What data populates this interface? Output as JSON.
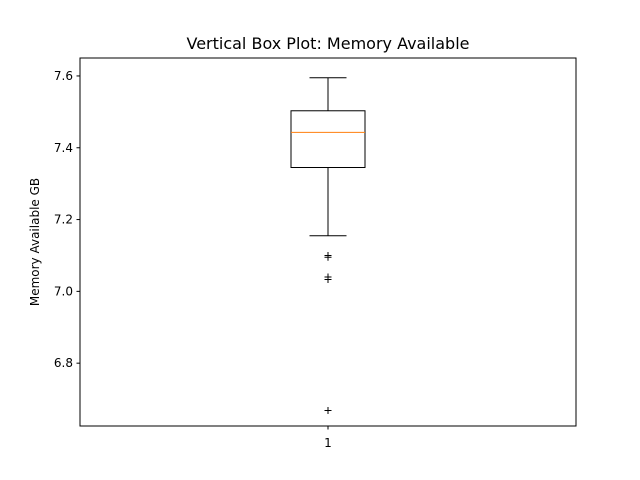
{
  "chart_data": {
    "type": "boxplot",
    "title": "Vertical Box Plot: Memory Available",
    "xlabel": "",
    "ylabel": "Memory Available GB",
    "categories": [
      "1"
    ],
    "ylim": [
      6.625,
      7.65
    ],
    "yticks": [
      6.8,
      7.0,
      7.2,
      7.4,
      7.6
    ],
    "ytick_labels": [
      "6.8",
      "7.0",
      "7.2",
      "7.4",
      "7.6"
    ],
    "grid": false,
    "boxes": [
      {
        "category": "1",
        "whisker_low": 7.155,
        "q1": 7.345,
        "median": 7.443,
        "q3": 7.503,
        "whisker_high": 7.595,
        "outliers": [
          7.1,
          7.095,
          7.04,
          7.033,
          6.668
        ]
      }
    ],
    "colors": {
      "box": "#000000",
      "median": "#ff7f0e",
      "outlier": "#000000"
    }
  }
}
